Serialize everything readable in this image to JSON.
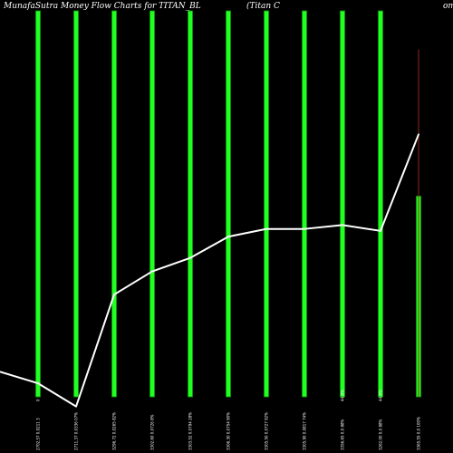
{
  "colors": {
    "background": "#000000",
    "bar": "#22ff22",
    "bar_edge": "#0a9a0a",
    "line": "#ffffff",
    "wick": "#8b2a1a",
    "text": "#ffffff"
  },
  "title": {
    "left": "MunafaSutra  Money Flow  Charts for TITAN_BL",
    "mid": "(Titan  C",
    "right": "om"
  },
  "chart_data": {
    "type": "bar",
    "title": "MunafaSutra  Money Flow  Charts for TITAN_BL",
    "ylim": [
      0,
      100
    ],
    "grid": false,
    "legend": "none",
    "categories": [
      "2702.57 0.0211 3",
      "2711.37 0.0336 07%",
      "3296.72 0.0265 82%",
      "3302.60 0.0726 8%",
      "3303.52 0.0794 28%",
      "3306.30 0.0754 90%",
      "3305.50 0.0727 92%",
      "3305.90 0.0817 74%",
      "3356.65 0.0 88%",
      "3262.00 0.0 88%",
      "3365.55 0.0 100%"
    ],
    "bar_labels": [
      "0",
      "",
      "",
      "",
      "",
      "",
      "",
      "",
      "44.8%",
      "44.8%",
      ""
    ],
    "series": [
      {
        "kind": "bar",
        "values": [
          100,
          100,
          100,
          100,
          100,
          100,
          100,
          100,
          100,
          100,
          52
        ]
      },
      {
        "kind": "line",
        "values": [
          3.5,
          -2.5,
          26.5,
          32.5,
          36.0,
          41.5,
          43.5,
          43.5,
          44.5,
          43.0,
          68.0
        ]
      }
    ],
    "extra_line_points": [
      {
        "x_index": -1,
        "value": 6.5
      }
    ],
    "wick": {
      "index": 10,
      "high": 90,
      "low": 0
    }
  }
}
